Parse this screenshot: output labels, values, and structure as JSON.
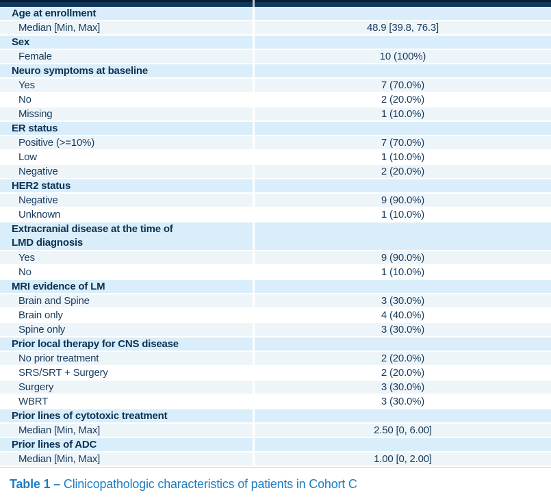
{
  "table": {
    "sections": [
      {
        "header": "Age at enrollment",
        "rows": [
          {
            "label": "Median [Min, Max]",
            "value": "48.9 [39.8, 76.3]"
          }
        ]
      },
      {
        "header": "Sex",
        "rows": [
          {
            "label": "Female",
            "value": "10 (100%)"
          }
        ]
      },
      {
        "header": "Neuro symptoms at baseline",
        "rows": [
          {
            "label": "Yes",
            "value": "7 (70.0%)"
          },
          {
            "label": "No",
            "value": "2 (20.0%)"
          },
          {
            "label": "Missing",
            "value": "1 (10.0%)"
          }
        ]
      },
      {
        "header": "ER status",
        "rows": [
          {
            "label": "Positive (>=10%)",
            "value": "7 (70.0%)"
          },
          {
            "label": "Low",
            "value": "1 (10.0%)"
          },
          {
            "label": "Negative",
            "value": "2 (20.0%)"
          }
        ]
      },
      {
        "header": "HER2 status",
        "rows": [
          {
            "label": "Negative",
            "value": "9 (90.0%)"
          },
          {
            "label": "Unknown",
            "value": "1 (10.0%)"
          }
        ]
      },
      {
        "header": "Extracranial disease at the time of\nLMD diagnosis",
        "rows": [
          {
            "label": "Yes",
            "value": "9 (90.0%)"
          },
          {
            "label": "No",
            "value": "1 (10.0%)"
          }
        ]
      },
      {
        "header": "MRI evidence of LM",
        "rows": [
          {
            "label": "Brain and Spine",
            "value": "3 (30.0%)"
          },
          {
            "label": "Brain only",
            "value": "4 (40.0%)"
          },
          {
            "label": "Spine only",
            "value": "3 (30.0%)"
          }
        ]
      },
      {
        "header": "Prior local therapy for CNS disease",
        "rows": [
          {
            "label": "No prior treatment",
            "value": "2 (20.0%)"
          },
          {
            "label": "SRS/SRT + Surgery",
            "value": "2 (20.0%)"
          },
          {
            "label": "Surgery",
            "value": "3 (30.0%)"
          },
          {
            "label": "WBRT",
            "value": "3 (30.0%)"
          }
        ]
      },
      {
        "header": "Prior lines of cytotoxic treatment",
        "rows": [
          {
            "label": "Median [Min, Max]",
            "value": "2.50 [0, 6.00]"
          }
        ]
      },
      {
        "header": "Prior lines of ADC",
        "rows": [
          {
            "label": "Median [Min, Max]",
            "value": "1.00 [0, 2.00]"
          }
        ]
      }
    ]
  },
  "caption": {
    "label": "Table 1 –",
    "text": "Clinicopathologic characteristics of patients in Cohort C"
  },
  "colors": {
    "header_bar_navy": "#10365a",
    "header_bar_top_edge": "#081f38",
    "category_row_bg": "#d9eefa",
    "stripe_row_bg": "#eef5f9",
    "text_navy": "#173a5e",
    "category_text_navy": "#0c3254",
    "caption_blue": "#1b7dc4"
  }
}
